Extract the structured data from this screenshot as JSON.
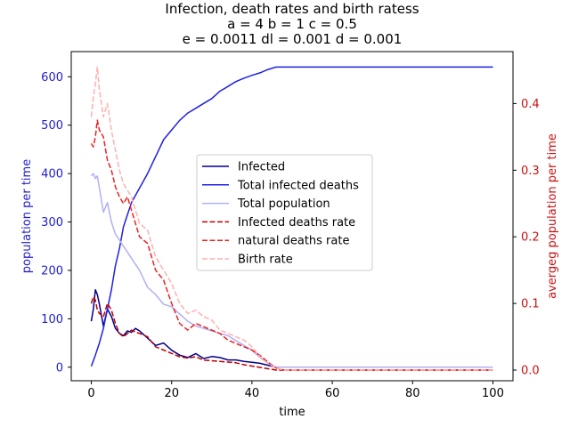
{
  "chart_data": {
    "type": "line",
    "title_lines": [
      "Infection, death rates and birth ratess",
      "a = 4   b = 1   c = 0.5",
      "e = 0.0011   dl = 0.001   d = 0.001"
    ],
    "xlabel": "time",
    "ylabel_left": "population per time",
    "ylabel_right": "avergeg population per time",
    "xlim": [
      -5,
      105
    ],
    "ylim_left": [
      -28,
      652
    ],
    "ylim_right": [
      -0.016,
      0.478
    ],
    "x_ticks": [
      0,
      20,
      40,
      60,
      80,
      100
    ],
    "y_ticks_left": [
      0,
      100,
      200,
      300,
      400,
      500,
      600
    ],
    "y_ticks_right": [
      0.0,
      0.1,
      0.2,
      0.3,
      0.4
    ],
    "y_tick_labels_right": [
      "0.0",
      "0.1",
      "0.2",
      "0.3",
      "0.4"
    ],
    "grid": false,
    "legend_position": "center",
    "series": [
      {
        "name": "Infected",
        "axis": "left",
        "color": "#00008b",
        "dash": "solid",
        "x": [
          0,
          0.5,
          1,
          1.5,
          2,
          3,
          4,
          5,
          6,
          7,
          8,
          9,
          10,
          11,
          12,
          14,
          16,
          18,
          20,
          22,
          24,
          26,
          28,
          30,
          32,
          34,
          36,
          38,
          40,
          42,
          44,
          46,
          48,
          50,
          60,
          70,
          80,
          90,
          100
        ],
        "y": [
          95,
          120,
          160,
          150,
          130,
          85,
          120,
          105,
          80,
          70,
          65,
          75,
          72,
          80,
          75,
          60,
          45,
          50,
          35,
          25,
          20,
          28,
          18,
          22,
          20,
          15,
          15,
          12,
          10,
          8,
          4,
          0,
          0,
          0,
          0,
          0,
          0,
          0,
          0
        ]
      },
      {
        "name": "Total infected deaths",
        "axis": "left",
        "color": "#2020e0",
        "dash": "solid",
        "x": [
          0,
          1,
          2,
          3,
          4,
          5,
          6,
          7,
          8,
          10,
          12,
          14,
          16,
          18,
          20,
          22,
          24,
          26,
          28,
          30,
          32,
          34,
          36,
          38,
          40,
          42,
          44,
          46,
          50,
          60,
          80,
          100
        ],
        "y": [
          2,
          25,
          50,
          80,
          120,
          160,
          210,
          245,
          290,
          340,
          370,
          400,
          435,
          470,
          490,
          510,
          525,
          535,
          545,
          555,
          570,
          580,
          590,
          597,
          603,
          608,
          615,
          620,
          620,
          620,
          620,
          620
        ]
      },
      {
        "name": "Total population",
        "axis": "left",
        "color": "#b0b0f5",
        "dash": "solid",
        "x": [
          0,
          0.5,
          1,
          1.5,
          2,
          3,
          4,
          5,
          6,
          8,
          10,
          12,
          14,
          16,
          18,
          20,
          22,
          24,
          26,
          28,
          30,
          32,
          34,
          36,
          38,
          40,
          42,
          44,
          46,
          50,
          60,
          80,
          100
        ],
        "y": [
          395,
          400,
          390,
          395,
          370,
          320,
          340,
          300,
          275,
          250,
          225,
          200,
          165,
          150,
          130,
          125,
          110,
          95,
          85,
          80,
          75,
          70,
          65,
          55,
          45,
          35,
          20,
          8,
          0,
          0,
          0,
          0,
          0
        ]
      },
      {
        "name": "Infected deaths rate",
        "axis": "right",
        "color": "#c00000",
        "dash": "dashed",
        "x": [
          0,
          0.5,
          1,
          1.5,
          2,
          3,
          4,
          5,
          6,
          7,
          8,
          9,
          10,
          11,
          12,
          14,
          16,
          18,
          20,
          22,
          24,
          26,
          28,
          30,
          32,
          34,
          36,
          38,
          40,
          42,
          44,
          46,
          50,
          60,
          80,
          100
        ],
        "y": [
          0.1,
          0.11,
          0.105,
          0.09,
          0.085,
          0.08,
          0.1,
          0.09,
          0.07,
          0.055,
          0.05,
          0.055,
          0.06,
          0.057,
          0.055,
          0.05,
          0.035,
          0.03,
          0.025,
          0.02,
          0.018,
          0.02,
          0.015,
          0.014,
          0.013,
          0.012,
          0.011,
          0.008,
          0.006,
          0.004,
          0.002,
          0.0,
          0.0,
          0.0,
          0.0,
          0.0
        ]
      },
      {
        "name": "natural deaths rate",
        "axis": "right",
        "color": "#ee2020",
        "dash": "dashed",
        "x": [
          0,
          0.5,
          1,
          1.5,
          2,
          3,
          4,
          5,
          6,
          7,
          8,
          9,
          10,
          11,
          12,
          14,
          16,
          18,
          20,
          22,
          24,
          26,
          28,
          30,
          32,
          34,
          36,
          38,
          40,
          42,
          44,
          46,
          48,
          50,
          60,
          80,
          100
        ],
        "y": [
          0.34,
          0.335,
          0.35,
          0.375,
          0.36,
          0.35,
          0.315,
          0.3,
          0.275,
          0.26,
          0.25,
          0.26,
          0.24,
          0.22,
          0.2,
          0.19,
          0.15,
          0.135,
          0.1,
          0.07,
          0.06,
          0.07,
          0.065,
          0.06,
          0.055,
          0.045,
          0.04,
          0.035,
          0.03,
          0.022,
          0.012,
          0.003,
          0.0,
          0.0,
          0.0,
          0.0,
          0.0
        ]
      },
      {
        "name": "Birth rate",
        "axis": "right",
        "color": "#ffb0b0",
        "dash": "dashed",
        "x": [
          0,
          0.5,
          1,
          1.5,
          2,
          3,
          4,
          5,
          6,
          7,
          8,
          9,
          10,
          11,
          12,
          14,
          16,
          18,
          20,
          22,
          24,
          26,
          28,
          30,
          32,
          34,
          36,
          38,
          40,
          42,
          44,
          46,
          48,
          50,
          60,
          80,
          100
        ],
        "y": [
          0.38,
          0.41,
          0.43,
          0.455,
          0.42,
          0.38,
          0.4,
          0.36,
          0.33,
          0.3,
          0.28,
          0.27,
          0.26,
          0.24,
          0.22,
          0.21,
          0.17,
          0.15,
          0.13,
          0.1,
          0.085,
          0.09,
          0.08,
          0.075,
          0.06,
          0.055,
          0.05,
          0.045,
          0.035,
          0.02,
          0.01,
          0.003,
          0.0,
          0.0,
          0.0,
          0.0,
          0.0
        ]
      }
    ]
  }
}
